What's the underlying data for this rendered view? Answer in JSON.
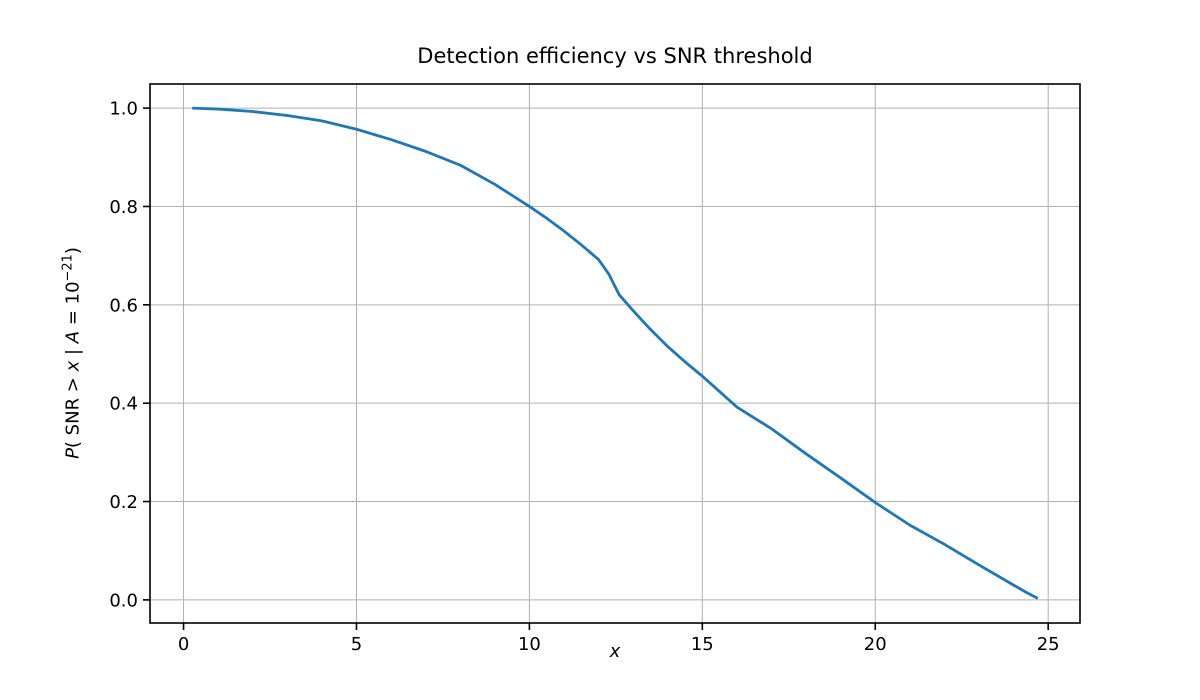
{
  "figure": {
    "background": "#ffffff"
  },
  "chart_data": {
    "type": "line",
    "title": "Detection efficiency vs SNR threshold",
    "xlabel": "x",
    "ylabel": "P( SNR > x | A = 10⁻²¹)",
    "ylabel_parts": [
      {
        "text": "P",
        "italic": true,
        "sup": false
      },
      {
        "text": "( SNR ",
        "italic": false,
        "sup": false
      },
      {
        "text": " > ",
        "italic": false,
        "sup": false
      },
      {
        "text": "x",
        "italic": true,
        "sup": false
      },
      {
        "text": " | ",
        "italic": false,
        "sup": false
      },
      {
        "text": "A",
        "italic": true,
        "sup": false
      },
      {
        "text": " = 10",
        "italic": false,
        "sup": false
      },
      {
        "text": "−21",
        "italic": false,
        "sup": true
      },
      {
        "text": ")",
        "italic": false,
        "sup": false
      }
    ],
    "xlim": [
      -0.97,
      25.92
    ],
    "ylim": [
      -0.047,
      1.049
    ],
    "xticks": [
      0,
      5,
      10,
      15,
      20,
      25
    ],
    "xtick_labels": [
      "0",
      "5",
      "10",
      "15",
      "20",
      "25"
    ],
    "yticks": [
      0.0,
      0.2,
      0.4,
      0.6,
      0.8,
      1.0
    ],
    "ytick_labels": [
      "0.0",
      "0.2",
      "0.4",
      "0.6",
      "0.8",
      "1.0"
    ],
    "grid": true,
    "legend": false,
    "series": [
      {
        "color": "#1f77b4",
        "x": [
          0.25,
          1,
          2,
          3,
          4,
          5,
          6,
          7,
          8,
          9,
          10,
          10.5,
          11,
          11.5,
          12,
          12.3,
          12.6,
          13,
          13.5,
          14,
          14.5,
          15,
          16,
          17,
          18,
          19,
          20,
          21,
          22,
          23,
          24,
          24.4,
          24.7
        ],
        "y": [
          1.0,
          0.998,
          0.993,
          0.985,
          0.974,
          0.957,
          0.936,
          0.912,
          0.884,
          0.845,
          0.8,
          0.776,
          0.75,
          0.722,
          0.692,
          0.662,
          0.62,
          0.588,
          0.55,
          0.515,
          0.484,
          0.455,
          0.392,
          0.348,
          0.297,
          0.248,
          0.198,
          0.152,
          0.113,
          0.071,
          0.03,
          0.014,
          0.003
        ]
      }
    ]
  },
  "style": {
    "line_color": "#1f77b4",
    "grid_color": "#b0b0b0",
    "spine_color": "#000000",
    "tick_label_color": "#000000"
  }
}
